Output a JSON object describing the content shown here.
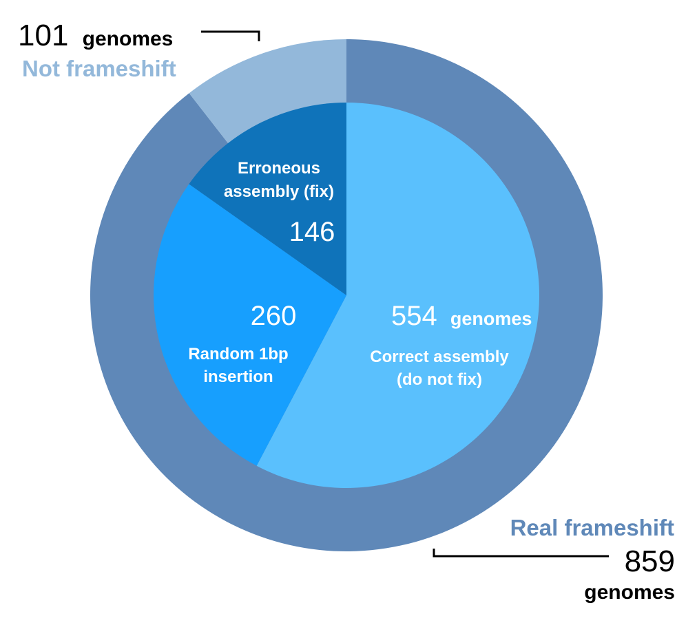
{
  "chart_data": {
    "type": "pie",
    "subtype": "nested-donut",
    "outer_ring": [
      {
        "label": "Real frameshift",
        "value": 859,
        "count_text": "859",
        "unit_text": "genomes",
        "color": "#5f88b8"
      },
      {
        "label": "Not frameshift",
        "value": 101,
        "count_text": "101",
        "unit_text": "genomes",
        "color": "#93b8da"
      }
    ],
    "inner_pie": [
      {
        "label_lines": [
          "Correct assembly",
          "(do not fix)"
        ],
        "value": 554,
        "count_text": "554",
        "unit_text": "genomes",
        "color": "#5ac0fd"
      },
      {
        "label_lines": [
          "Random 1bp",
          "insertion"
        ],
        "value": 260,
        "count_text": "260",
        "unit_text": "",
        "color": "#179ffe"
      },
      {
        "label_lines": [
          "Erroneous",
          "assembly (fix)"
        ],
        "value": 146,
        "count_text": "146",
        "unit_text": "",
        "color": "#0f73ba"
      }
    ],
    "start": "top, clockwise"
  }
}
